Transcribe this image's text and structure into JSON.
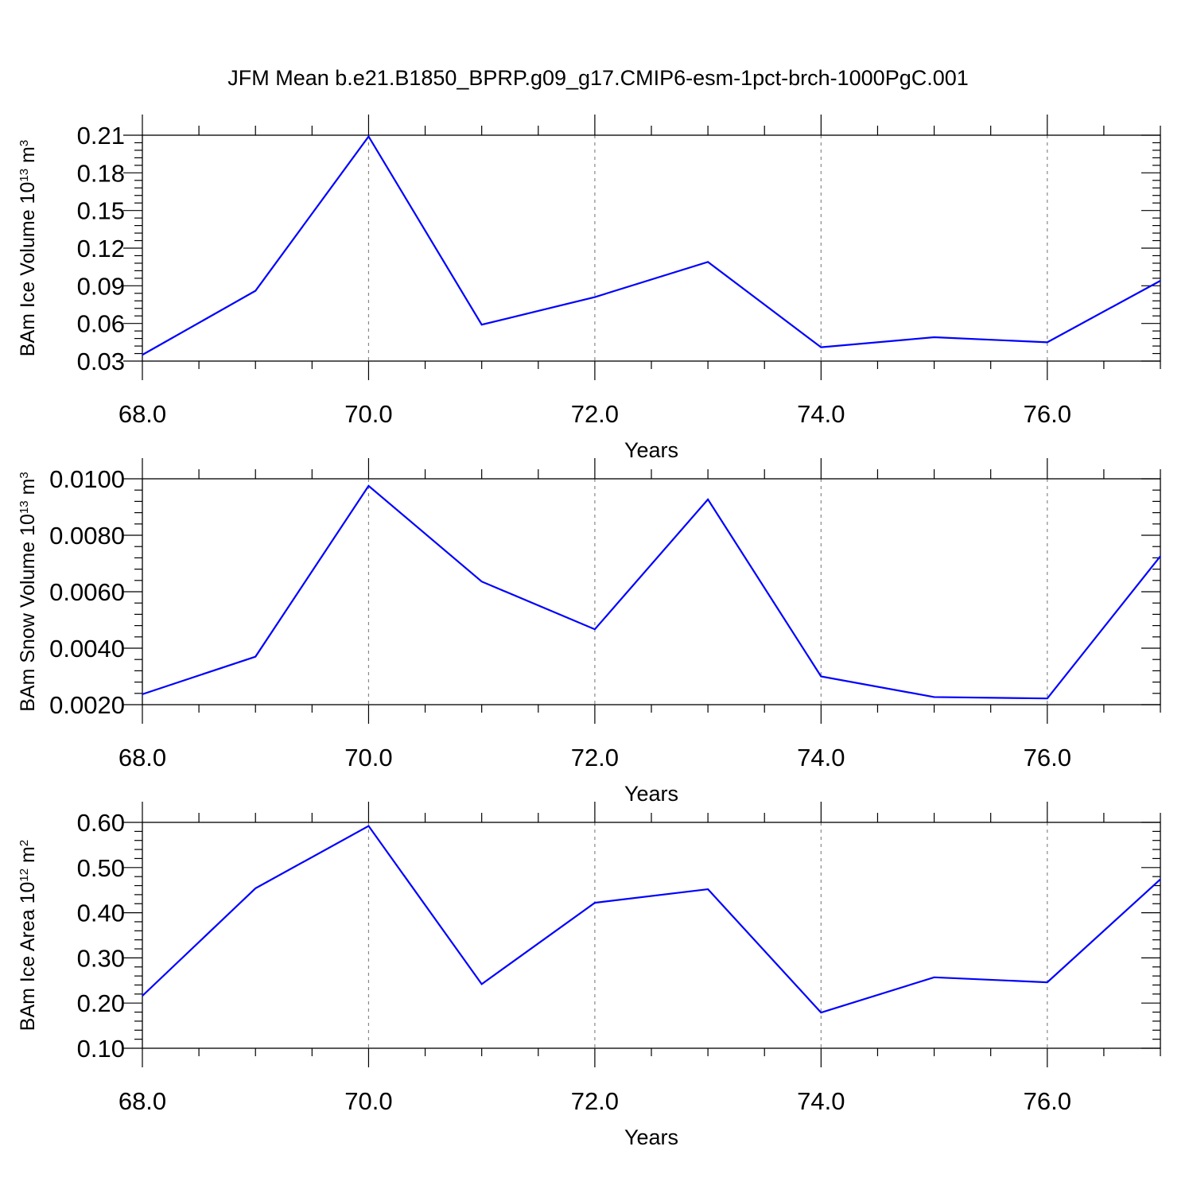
{
  "title": "JFM Mean b.e21.B1850_BPRP.g09_g17.CMIP6-esm-1pct-brch-1000PgC.001",
  "chart_data": [
    {
      "type": "line",
      "title": "",
      "xlabel": "Years",
      "ylabel": "BAm Ice Volume 10",
      "ylabel_exp": "13",
      "ylabel_unit": " m",
      "ylabel_unit_exp": "3",
      "xlim": [
        68,
        77
      ],
      "ylim": [
        0.03,
        0.21
      ],
      "x_ticks": [
        68,
        70,
        72,
        74,
        76
      ],
      "x_tick_labels": [
        "68.0",
        "70.0",
        "72.0",
        "74.0",
        "76.0"
      ],
      "y_ticks": [
        0.03,
        0.06,
        0.09,
        0.12,
        0.15,
        0.18,
        0.21
      ],
      "y_tick_labels": [
        "0.03",
        "0.06",
        "0.09",
        "0.12",
        "0.15",
        "0.18",
        "0.21"
      ],
      "y_minor_step": 0.006,
      "x": [
        68,
        69,
        70,
        71,
        72,
        73,
        74,
        75,
        76,
        77
      ],
      "values": [
        0.035,
        0.086,
        0.209,
        0.059,
        0.081,
        0.109,
        0.041,
        0.049,
        0.045,
        0.094
      ]
    },
    {
      "type": "line",
      "title": "",
      "xlabel": "Years",
      "ylabel": "BAm Snow Volume 10",
      "ylabel_exp": "13",
      "ylabel_unit": " m",
      "ylabel_unit_exp": "3",
      "xlim": [
        68,
        77
      ],
      "ylim": [
        0.002,
        0.01
      ],
      "x_ticks": [
        68,
        70,
        72,
        74,
        76
      ],
      "x_tick_labels": [
        "68.0",
        "70.0",
        "72.0",
        "74.0",
        "76.0"
      ],
      "y_ticks": [
        0.002,
        0.004,
        0.006,
        0.008,
        0.01
      ],
      "y_tick_labels": [
        "0.0020",
        "0.0040",
        "0.0060",
        "0.0080",
        "0.0100"
      ],
      "y_minor_step": 0.0004,
      "x": [
        68,
        69,
        70,
        71,
        72,
        73,
        74,
        75,
        76,
        77
      ],
      "values": [
        0.00237,
        0.0037,
        0.00975,
        0.00636,
        0.00467,
        0.00927,
        0.003,
        0.00227,
        0.00222,
        0.00726
      ]
    },
    {
      "type": "line",
      "title": "",
      "xlabel": "Years",
      "ylabel": "BAm Ice Area 10",
      "ylabel_exp": "12",
      "ylabel_unit": " m",
      "ylabel_unit_exp": "2",
      "xlim": [
        68,
        77
      ],
      "ylim": [
        0.1,
        0.6
      ],
      "x_ticks": [
        68,
        70,
        72,
        74,
        76
      ],
      "x_tick_labels": [
        "68.0",
        "70.0",
        "72.0",
        "74.0",
        "76.0"
      ],
      "y_ticks": [
        0.1,
        0.2,
        0.3,
        0.4,
        0.5,
        0.6
      ],
      "y_tick_labels": [
        "0.10",
        "0.20",
        "0.30",
        "0.40",
        "0.50",
        "0.60"
      ],
      "y_minor_step": 0.02,
      "x": [
        68,
        69,
        70,
        71,
        72,
        73,
        74,
        75,
        76,
        77
      ],
      "values": [
        0.216,
        0.454,
        0.592,
        0.242,
        0.422,
        0.452,
        0.179,
        0.257,
        0.246,
        0.474
      ]
    }
  ],
  "colors": {
    "series": "#0000ff",
    "frame": "#000000",
    "grid": "#888888"
  }
}
